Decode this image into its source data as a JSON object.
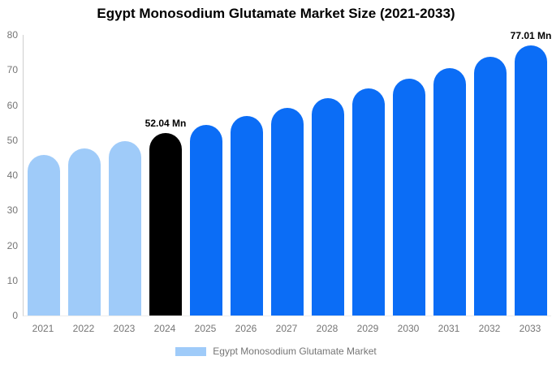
{
  "colors": {
    "light_blue": "#9fcbf9",
    "blue": "#0b6df6",
    "black": "#000000",
    "axis_line": "#cfcfcf",
    "tick_text": "#757575",
    "title_text": "#000000"
  },
  "chart_data": {
    "type": "bar",
    "title": "Egypt Monosodium Glutamate Market Size (2021-2033)",
    "xlabel": "",
    "ylabel": "",
    "categories": [
      "2021",
      "2022",
      "2023",
      "2024",
      "2025",
      "2026",
      "2027",
      "2028",
      "2029",
      "2030",
      "2031",
      "2032",
      "2033"
    ],
    "values": [
      45.7,
      47.7,
      49.8,
      52.04,
      54.4,
      56.8,
      59.3,
      61.9,
      64.7,
      67.6,
      70.6,
      73.7,
      77.01
    ],
    "bar_colors": [
      "light_blue",
      "light_blue",
      "light_blue",
      "black",
      "blue",
      "blue",
      "blue",
      "blue",
      "blue",
      "blue",
      "blue",
      "blue",
      "blue"
    ],
    "bar_labels": [
      "",
      "",
      "",
      "52.04 Mn",
      "",
      "",
      "",
      "",
      "",
      "",
      "",
      "",
      "77.01 Mn"
    ],
    "unit": "Mn",
    "ylim": [
      0,
      80
    ],
    "yticks": [
      0,
      10,
      20,
      30,
      40,
      50,
      60,
      70,
      80
    ],
    "grid": false,
    "legend": [
      "Egypt Monosodium Glutamate Market"
    ],
    "legend_position": "bottom"
  }
}
